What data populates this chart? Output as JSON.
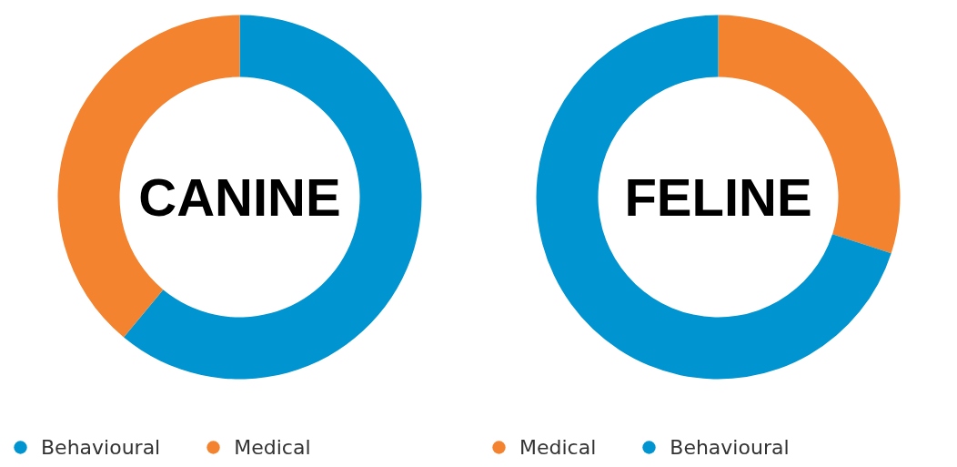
{
  "chart_data": [
    {
      "type": "donut",
      "title": "CANINE",
      "categories": [
        "Behavioural",
        "Medical"
      ],
      "values": [
        61,
        39
      ],
      "colors": [
        "#0094d0",
        "#f3832e"
      ],
      "legend": "bottom"
    },
    {
      "type": "donut",
      "title": "FELINE",
      "categories": [
        "Medical",
        "Behavioural"
      ],
      "values": [
        30,
        70
      ],
      "colors": [
        "#f3832e",
        "#0094d0"
      ],
      "legend": "bottom"
    }
  ]
}
